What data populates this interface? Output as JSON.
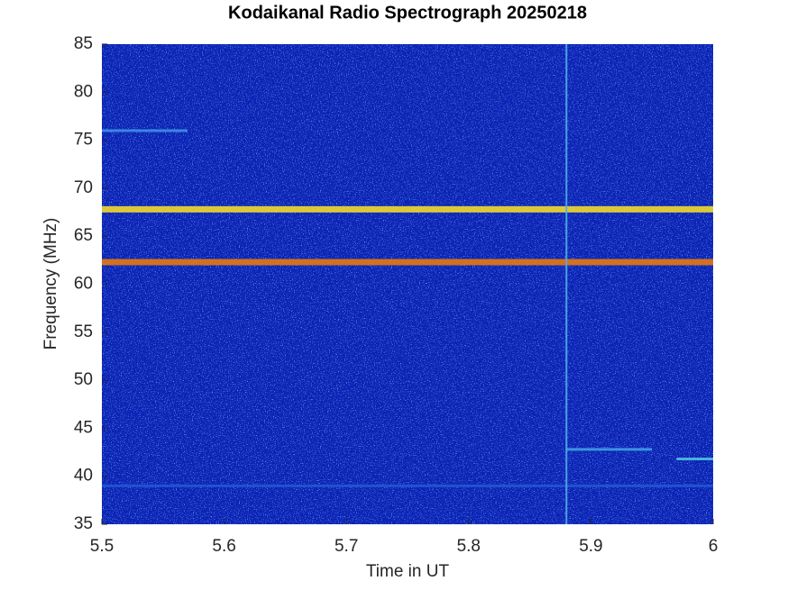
{
  "chart_data": {
    "type": "spectrogram",
    "title": "Kodaikanal Radio Spectrograph  20250218",
    "x_label": "Time in UT",
    "y_label": "Frequency (MHz)",
    "xlim": [
      5.5,
      6
    ],
    "xticks": [
      5.5,
      5.6,
      5.7,
      5.8,
      5.9,
      6
    ],
    "ylim": [
      35,
      85
    ],
    "yticks": [
      35,
      40,
      45,
      50,
      55,
      60,
      65,
      70,
      75,
      80,
      85
    ],
    "background_color": "#0c22b4",
    "bands": [
      {
        "x": [
          5.5,
          6
        ],
        "y": [
          67.8,
          67.8
        ],
        "color": "#f2d92a"
      },
      {
        "x": [
          5.5,
          6
        ],
        "y": [
          62.3,
          62.3
        ],
        "color": "#e8780f"
      },
      {
        "x": [
          5.5,
          5.57
        ],
        "y": [
          76,
          76
        ],
        "color": "#3f8fe8"
      },
      {
        "x": [
          5.88,
          5.95
        ],
        "y": [
          42.8,
          42.8
        ],
        "color": "#3f9fe8"
      },
      {
        "x": [
          5.97,
          6
        ],
        "y": [
          41.8,
          41.8
        ],
        "color": "#4fc0e0"
      },
      {
        "x": [
          5.5,
          6
        ],
        "y": [
          39,
          39
        ],
        "color": "#2457d0"
      },
      {
        "x": [
          5.88,
          5.88
        ],
        "y": [
          35,
          85
        ],
        "color": "#4fb0e8"
      }
    ]
  }
}
